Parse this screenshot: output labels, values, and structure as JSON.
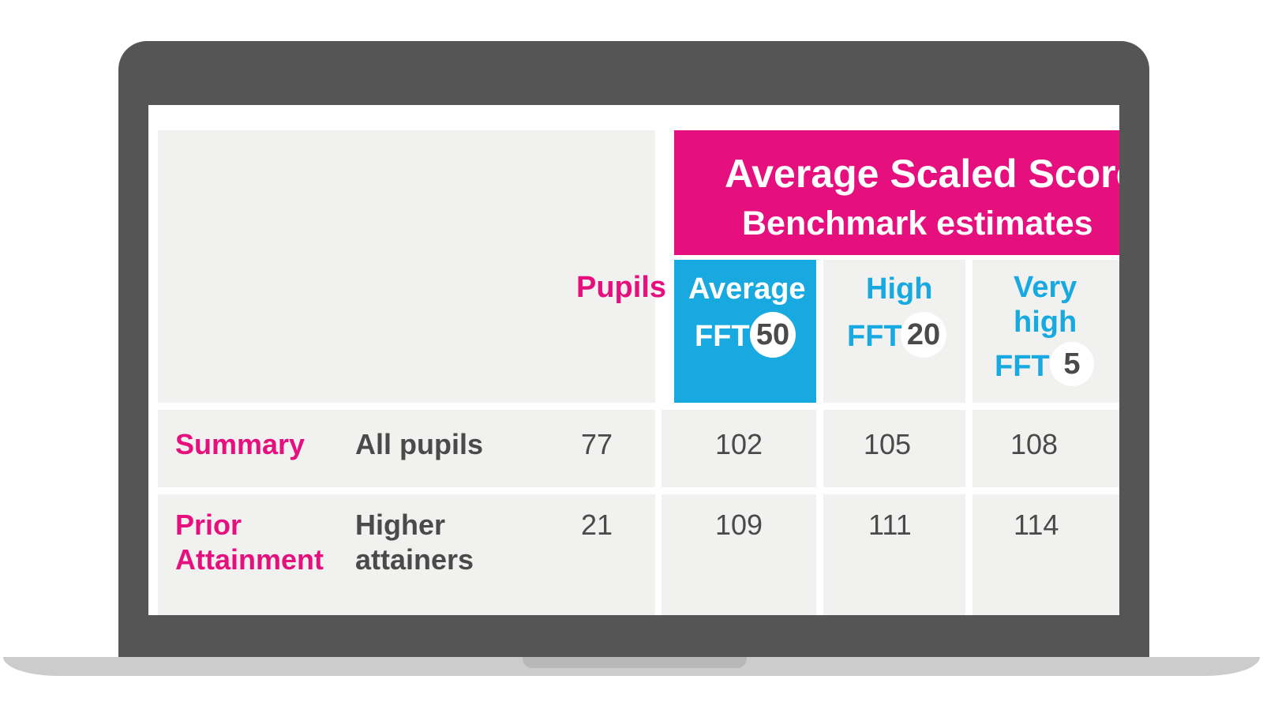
{
  "header": {
    "title_line1": "Average Scaled Score",
    "title_line2": "Benchmark estimates",
    "pupils_label": "Pupils"
  },
  "columns": [
    {
      "label": "Average",
      "fft_prefix": "FFT",
      "fft_value": "50"
    },
    {
      "label": "High",
      "fft_prefix": "FFT",
      "fft_value": "20"
    },
    {
      "label_line1": "Very",
      "label_line2": "high",
      "fft_prefix": "FFT",
      "fft_value": "5"
    }
  ],
  "rows": [
    {
      "category": "Summary",
      "description": "All pupils",
      "pupils": "77",
      "values": [
        "102",
        "105",
        "108"
      ]
    },
    {
      "category_line1": "Prior",
      "category_line2": "Attainment",
      "description_line1": "Higher",
      "description_line2": "attainers",
      "pupils": "21",
      "values": [
        "109",
        "111",
        "114"
      ]
    }
  ],
  "colors": {
    "magenta": "#e5107e",
    "blue": "#19a9e1",
    "text_grey": "#4a4a4a",
    "cell_bg": "#f1f1f0",
    "laptop_frame": "#555555"
  }
}
